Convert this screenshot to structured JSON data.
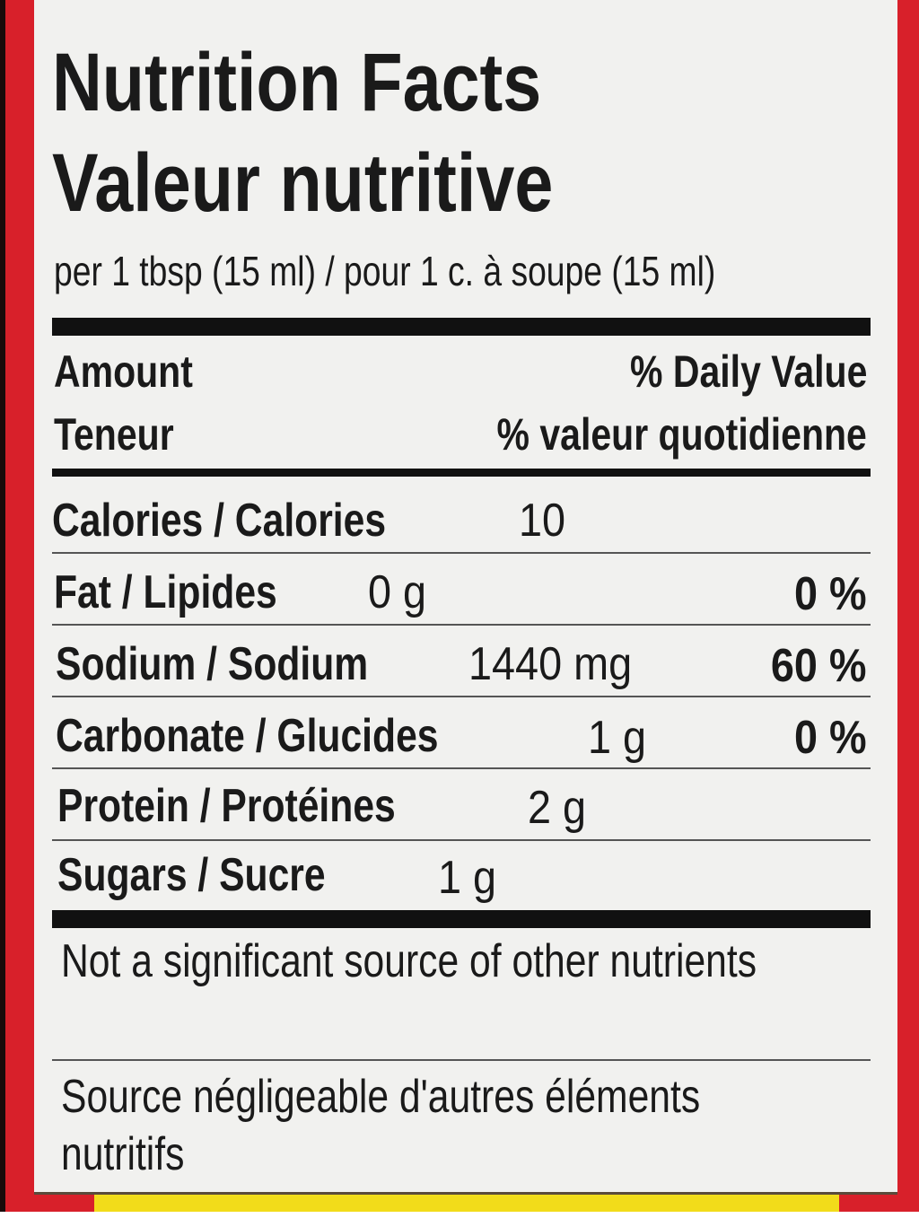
{
  "title_en": "Nutrition Facts",
  "title_fr": "Valeur nutritive",
  "serving": "per 1 tbsp (15 ml) / pour 1 c. à soupe (15 ml)",
  "header": {
    "amount_en": "Amount",
    "amount_fr": "Teneur",
    "dv_en": "% Daily Value",
    "dv_fr": "% valeur quotidienne"
  },
  "rows": [
    {
      "label": "Calories / Calories",
      "amount": "10",
      "dv": ""
    },
    {
      "label": "Fat / Lipides",
      "amount": "0 g",
      "dv": "0 %"
    },
    {
      "label": "Sodium / Sodium",
      "amount": "1440 mg",
      "dv": "60 %"
    },
    {
      "label": "Carbonate / Glucides",
      "amount": "1 g",
      "dv": "0 %"
    },
    {
      "label": "Protein / Protéines",
      "amount": "2 g",
      "dv": ""
    },
    {
      "label": "Sugars / Sucre",
      "amount": "1 g",
      "dv": ""
    }
  ],
  "footnote_en": "Not a significant source of other nutrients",
  "footnote_fr": "Source négligeable d'autres éléments nutritifs",
  "colors": {
    "border": "#d8202a",
    "label_bg": "#f1f1ef",
    "strip": "#f2dc1a"
  }
}
